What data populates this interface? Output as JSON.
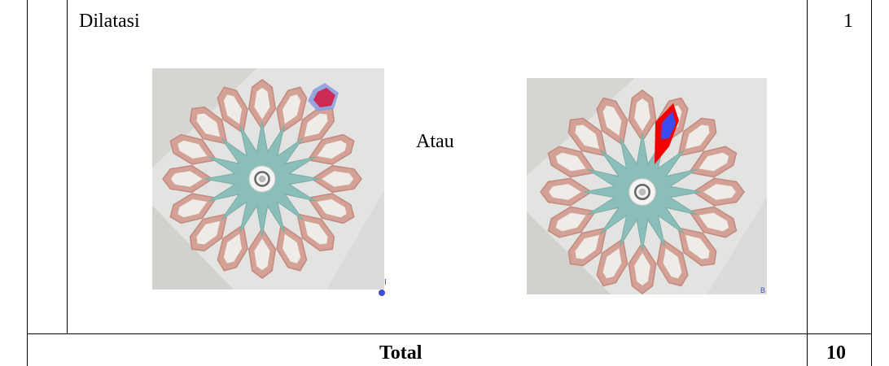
{
  "table": {
    "row": {
      "criteria": "Dilatasi",
      "or_label": "Atau",
      "score": "1"
    },
    "total_row": {
      "label": "Total",
      "score": "10"
    }
  },
  "figures": [
    {
      "name": "rosette-dilation-left",
      "marker_label": "I",
      "highlight_fill": "#cc2b55",
      "highlight_outline": "#8d9fe0"
    },
    {
      "name": "rosette-dilation-right",
      "marker_label": "B",
      "highlight_fill": "#3a4cf0",
      "highlight_outline": "#f50000"
    }
  ],
  "colors": {
    "rosette_petal": "#d3a196",
    "rosette_petal_stroke": "#c28a7f",
    "rosette_star": "#8cbeb9",
    "rosette_bg": "#e3e3e1"
  }
}
